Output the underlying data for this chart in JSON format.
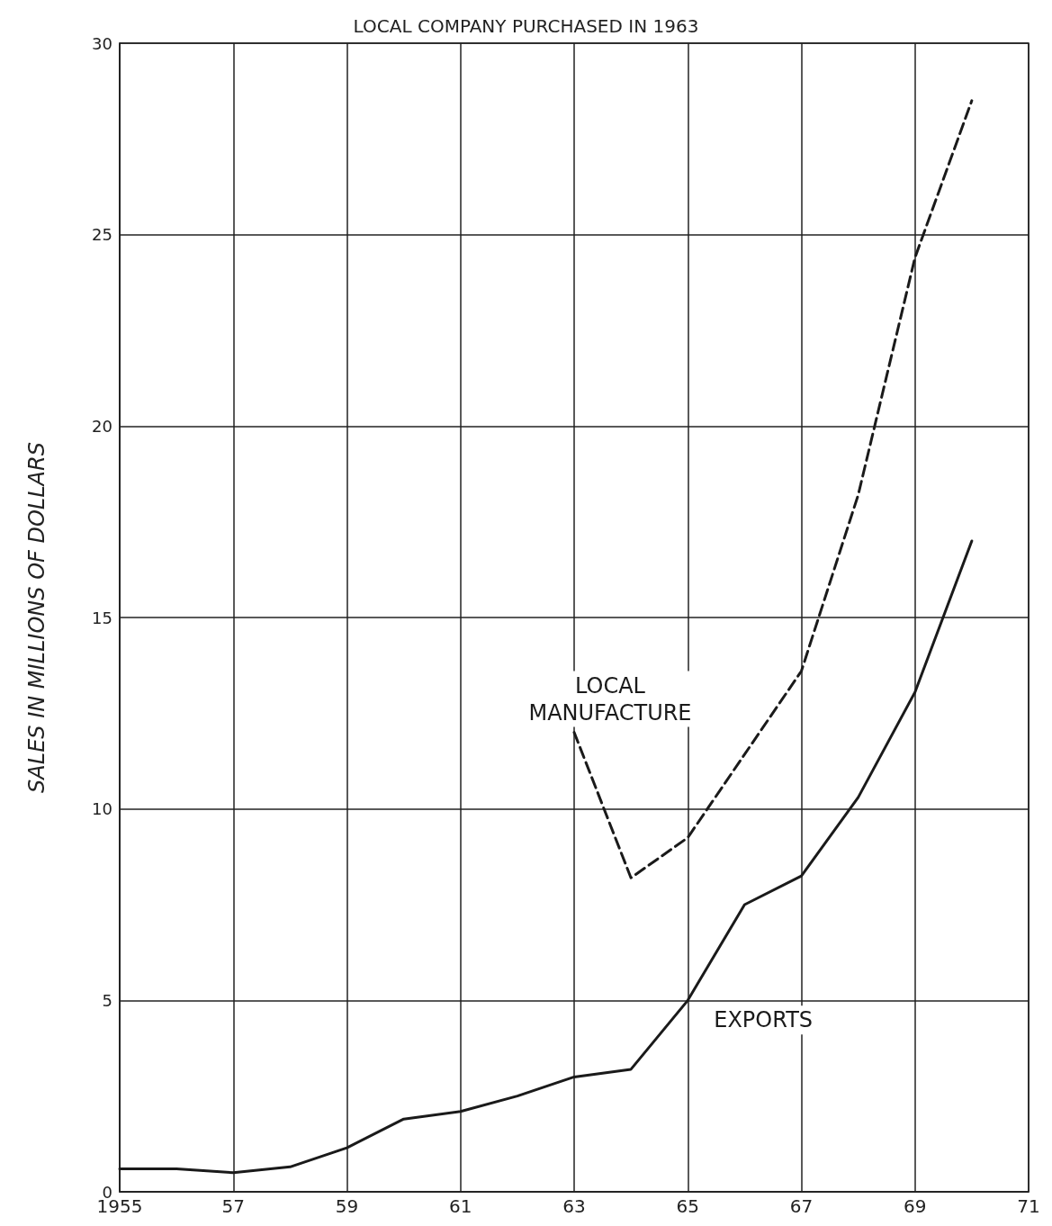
{
  "chart_data": {
    "type": "line",
    "title": "LOCAL COMPANY PURCHASED IN 1963",
    "ylabel": "SALES IN MILLIONS OF DOLLARS",
    "xlim": [
      1955,
      1971
    ],
    "xticks": [
      {
        "value": 1955,
        "label": "1955"
      },
      {
        "value": 1957,
        "label": "57"
      },
      {
        "value": 1959,
        "label": "59"
      },
      {
        "value": 1961,
        "label": "61"
      },
      {
        "value": 1963,
        "label": "63"
      },
      {
        "value": 1965,
        "label": "65"
      },
      {
        "value": 1967,
        "label": "67"
      },
      {
        "value": 1969,
        "label": "69"
      },
      {
        "value": 1971,
        "label": "71"
      }
    ],
    "ylim": [
      0,
      30
    ],
    "yticks": [
      0,
      5,
      10,
      15,
      20,
      25,
      30
    ],
    "grid": true,
    "legend": false,
    "series": [
      {
        "name": "LOCAL\nMANUFACTURE",
        "color": "#1a1a1a",
        "line_style": "dashed",
        "x": [
          1963,
          1964,
          1965,
          1967,
          1968,
          1969,
          1970
        ],
        "values": [
          12.0,
          8.2,
          9.25,
          13.6,
          18.2,
          24.4,
          28.5
        ]
      },
      {
        "name": "EXPORTS",
        "color": "#1a1a1a",
        "line_style": "solid",
        "x": [
          1955,
          1956,
          1957,
          1958,
          1959,
          1960,
          1961,
          1962,
          1963,
          1964,
          1965,
          1966,
          1967,
          1968,
          1969,
          1970
        ],
        "values": [
          0.6,
          0.6,
          0.5,
          0.65,
          1.15,
          1.9,
          2.1,
          2.5,
          3.0,
          3.2,
          5.0,
          7.5,
          8.25,
          10.3,
          13.05,
          17.0
        ]
      }
    ]
  }
}
